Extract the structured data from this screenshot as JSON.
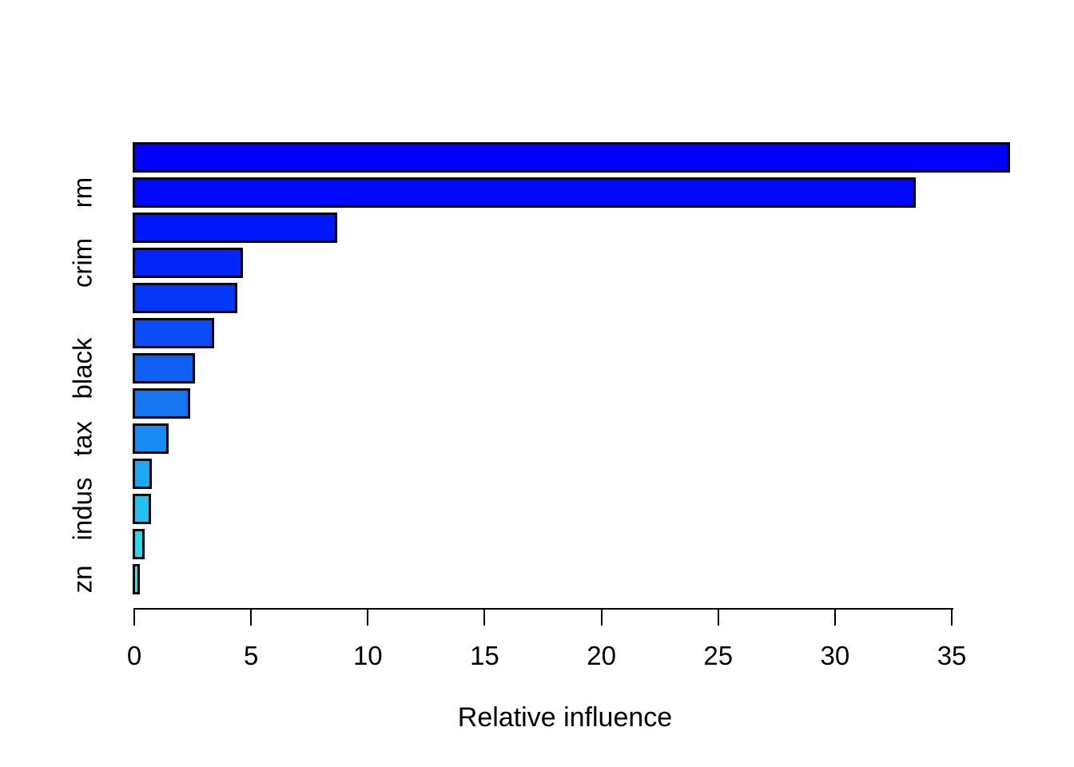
{
  "figure": {
    "background_color": "#FFFFFF",
    "text_color": "#000000"
  },
  "chart_data": {
    "type": "bar",
    "orientation": "horizontal",
    "title": "",
    "xlabel": "Relative influence",
    "ylabel": "",
    "grid": false,
    "legend": "none",
    "x_ticks": [
      0,
      5,
      10,
      15,
      20,
      25,
      30,
      35
    ],
    "x_axis_range": [
      0,
      35
    ],
    "bar_border_color": "#000000",
    "categories": [
      "",
      "rm",
      "",
      "crim",
      "",
      "",
      "black",
      "",
      "tax",
      "",
      "indus",
      "",
      "zn"
    ],
    "bars": [
      {
        "label": "",
        "value": 37.46,
        "color": "#0000FE"
      },
      {
        "label": "rm",
        "value": 33.44,
        "color": "#0009FD"
      },
      {
        "label": "",
        "value": 8.64,
        "color": "#0017FA"
      },
      {
        "label": "crim",
        "value": 4.62,
        "color": "#0325F9"
      },
      {
        "label": "",
        "value": 4.39,
        "color": "#0537F8"
      },
      {
        "label": "",
        "value": 3.4,
        "color": "#0A4CF5"
      },
      {
        "label": "black",
        "value": 2.57,
        "color": "#0F61F3"
      },
      {
        "label": "",
        "value": 2.37,
        "color": "#1476F0"
      },
      {
        "label": "tax",
        "value": 1.45,
        "color": "#188CF4"
      },
      {
        "label": "",
        "value": 0.72,
        "color": "#1DA9F2"
      },
      {
        "label": "indus",
        "value": 0.67,
        "color": "#23C1EF"
      },
      {
        "label": "",
        "value": 0.42,
        "color": "#29D7EC"
      },
      {
        "label": "zn",
        "value": 0.2,
        "color": "#2FE5E2"
      }
    ]
  }
}
